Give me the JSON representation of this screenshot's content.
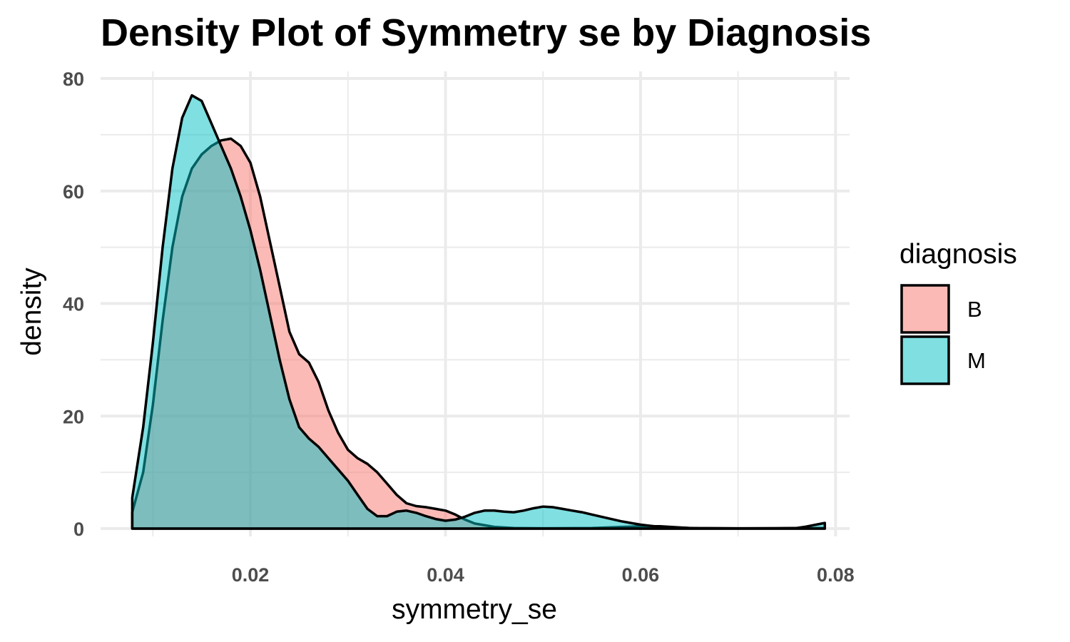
{
  "chart_data": {
    "type": "area",
    "title": "Density Plot of Symmetry se by Diagnosis",
    "xlabel": "symmetry_se",
    "ylabel": "density",
    "xlim": [
      0.00788,
      0.0789
    ],
    "ylim": [
      0,
      80
    ],
    "x_ticks": [
      0.02,
      0.04,
      0.06,
      0.08
    ],
    "x_tick_labels": [
      "0.02",
      "0.04",
      "0.06",
      "0.08"
    ],
    "y_ticks": [
      0,
      20,
      40,
      60,
      80
    ],
    "y_tick_labels": [
      "0",
      "20",
      "40",
      "60",
      "80"
    ],
    "grid": true,
    "fill_alpha": 0.5,
    "legend": {
      "title": "diagnosis",
      "position": "right"
    },
    "series": [
      {
        "name": "B",
        "color": "#F8766D",
        "points": [
          [
            0.00788,
            2.9
          ],
          [
            0.009,
            10
          ],
          [
            0.01,
            22
          ],
          [
            0.011,
            37
          ],
          [
            0.012,
            50
          ],
          [
            0.013,
            59
          ],
          [
            0.014,
            64
          ],
          [
            0.015,
            66.5
          ],
          [
            0.016,
            68
          ],
          [
            0.017,
            69
          ],
          [
            0.018,
            69.3
          ],
          [
            0.019,
            68
          ],
          [
            0.02,
            65
          ],
          [
            0.021,
            59
          ],
          [
            0.022,
            51
          ],
          [
            0.023,
            43
          ],
          [
            0.024,
            35
          ],
          [
            0.025,
            31
          ],
          [
            0.026,
            29.5
          ],
          [
            0.027,
            26
          ],
          [
            0.028,
            21
          ],
          [
            0.029,
            17
          ],
          [
            0.03,
            14
          ],
          [
            0.031,
            12.5
          ],
          [
            0.032,
            11.5
          ],
          [
            0.033,
            10
          ],
          [
            0.034,
            8
          ],
          [
            0.035,
            6
          ],
          [
            0.036,
            4.5
          ],
          [
            0.037,
            4
          ],
          [
            0.038,
            3.8
          ],
          [
            0.039,
            3.5
          ],
          [
            0.04,
            3.2
          ],
          [
            0.041,
            2.5
          ],
          [
            0.042,
            1.6
          ],
          [
            0.043,
            0.9
          ],
          [
            0.045,
            0.3
          ],
          [
            0.047,
            0.1
          ],
          [
            0.05,
            0.05
          ],
          [
            0.055,
            0.1
          ],
          [
            0.06,
            0.4
          ],
          [
            0.062,
            0.4
          ],
          [
            0.065,
            0.1
          ],
          [
            0.07,
            0.05
          ],
          [
            0.0789,
            0.1
          ]
        ]
      },
      {
        "name": "M",
        "color": "#00BFC4",
        "points": [
          [
            0.00788,
            5.5
          ],
          [
            0.009,
            18
          ],
          [
            0.01,
            33
          ],
          [
            0.011,
            50
          ],
          [
            0.012,
            64
          ],
          [
            0.013,
            73
          ],
          [
            0.014,
            77
          ],
          [
            0.015,
            76
          ],
          [
            0.016,
            72
          ],
          [
            0.017,
            68
          ],
          [
            0.018,
            64
          ],
          [
            0.019,
            59
          ],
          [
            0.02,
            53
          ],
          [
            0.021,
            46
          ],
          [
            0.022,
            38
          ],
          [
            0.023,
            30
          ],
          [
            0.024,
            23
          ],
          [
            0.025,
            18
          ],
          [
            0.026,
            16
          ],
          [
            0.027,
            14.5
          ],
          [
            0.028,
            12.5
          ],
          [
            0.029,
            10.5
          ],
          [
            0.03,
            8.5
          ],
          [
            0.031,
            6
          ],
          [
            0.032,
            3.5
          ],
          [
            0.033,
            2.2
          ],
          [
            0.034,
            2.2
          ],
          [
            0.035,
            3
          ],
          [
            0.036,
            3.2
          ],
          [
            0.037,
            2.8
          ],
          [
            0.038,
            2.2
          ],
          [
            0.039,
            1.7
          ],
          [
            0.04,
            1.4
          ],
          [
            0.041,
            1.6
          ],
          [
            0.042,
            2.1
          ],
          [
            0.043,
            2.8
          ],
          [
            0.044,
            3.2
          ],
          [
            0.045,
            3.2
          ],
          [
            0.046,
            3.0
          ],
          [
            0.047,
            2.9
          ],
          [
            0.048,
            3.2
          ],
          [
            0.049,
            3.6
          ],
          [
            0.05,
            3.9
          ],
          [
            0.051,
            3.8
          ],
          [
            0.052,
            3.5
          ],
          [
            0.053,
            3.2
          ],
          [
            0.054,
            2.9
          ],
          [
            0.055,
            2.5
          ],
          [
            0.056,
            2.1
          ],
          [
            0.057,
            1.7
          ],
          [
            0.058,
            1.3
          ],
          [
            0.059,
            1.0
          ],
          [
            0.06,
            0.7
          ],
          [
            0.061,
            0.5
          ],
          [
            0.062,
            0.3
          ],
          [
            0.064,
            0.15
          ],
          [
            0.066,
            0.05
          ],
          [
            0.07,
            0.02
          ],
          [
            0.074,
            0.02
          ],
          [
            0.076,
            0.1
          ],
          [
            0.077,
            0.35
          ],
          [
            0.078,
            0.7
          ],
          [
            0.0789,
            1.0
          ]
        ]
      }
    ]
  }
}
